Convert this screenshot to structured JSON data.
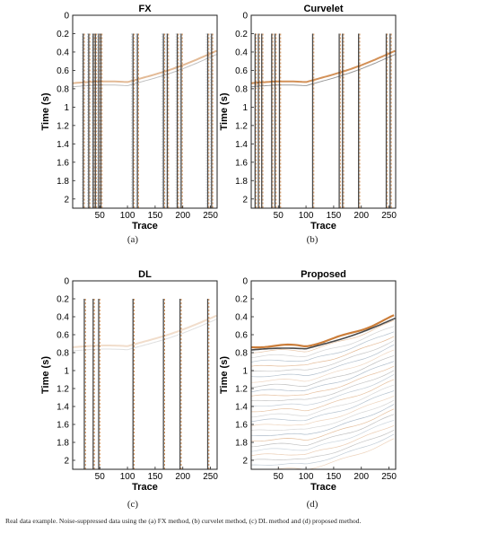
{
  "panels": [
    {
      "key": "fx",
      "title": "FX",
      "sublabel": "(a)",
      "traces": [
        20,
        30,
        38,
        42,
        48,
        52,
        110,
        118,
        165,
        172,
        190,
        197,
        245,
        252
      ],
      "event": "mid"
    },
    {
      "key": "curvelet",
      "title": "Curvelet",
      "sublabel": "(b)",
      "traces": [
        8,
        14,
        20,
        38,
        44,
        52,
        112,
        160,
        166,
        195,
        245,
        252
      ],
      "event": "strong"
    },
    {
      "key": "dl",
      "title": "DL",
      "sublabel": "(c)",
      "traces": [
        22,
        38,
        48,
        110,
        165,
        195,
        245
      ],
      "event": "faint"
    },
    {
      "key": "proposed",
      "title": "Proposed",
      "sublabel": "(d)",
      "traces": [],
      "event": "dense"
    }
  ],
  "axes": {
    "ylabel": "Time (s)",
    "xlabel": "Trace",
    "yticks": [
      "0",
      "0.2",
      "0.4",
      "0.6",
      "0.8",
      "1",
      "1.2",
      "1.4",
      "1.6",
      "1.8",
      "2"
    ],
    "ytick_values": [
      0,
      0.2,
      0.4,
      0.6,
      0.8,
      1,
      1.2,
      1.4,
      1.6,
      1.8,
      2
    ],
    "xticks": [
      "50",
      "100",
      "150",
      "200",
      "250"
    ],
    "xtick_values": [
      50,
      100,
      150,
      200,
      250
    ],
    "xlim": [
      1,
      262
    ],
    "ylim": [
      0,
      2.1
    ]
  },
  "caption": "Real data example. Noise-suppressed data using the (a) FX method, (b) curvelet method, (c) DL method and (d) proposed method.",
  "colors": {
    "orange": "#c8762e",
    "dark": "#2a2a2a",
    "blue": "#4a6a88",
    "frame": "#222222"
  }
}
